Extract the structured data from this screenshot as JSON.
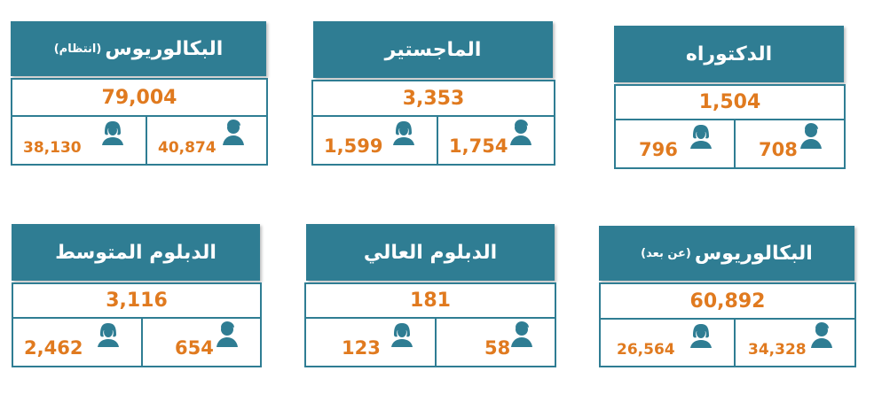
{
  "colors": {
    "header": "#2f7d93",
    "number": "#e07a1f",
    "border": "#2f7d93"
  },
  "cards": [
    {
      "title": "البكالوريوس",
      "subtitle": "(انتظام)",
      "total": "79,004",
      "female": "38,130",
      "male": "40,874"
    },
    {
      "title": "الماجستير",
      "subtitle": "",
      "total": "3,353",
      "female": "1,599",
      "male": "1,754"
    },
    {
      "title": "الدكتوراه",
      "subtitle": "",
      "total": "1,504",
      "female": "796",
      "male": "708"
    },
    {
      "title": "الدبلوم المتوسط",
      "subtitle": "",
      "total": "3,116",
      "female": "2,462",
      "male": "654"
    },
    {
      "title": "الدبلوم العالي",
      "subtitle": "",
      "total": "181",
      "female": "123",
      "male": "58"
    },
    {
      "title": "البكالوريوس",
      "subtitle": "(عن بعد)",
      "total": "60,892",
      "female": "26,564",
      "male": "34,328"
    }
  ],
  "icons": {
    "female": "female-user-icon",
    "male": "male-user-icon"
  }
}
